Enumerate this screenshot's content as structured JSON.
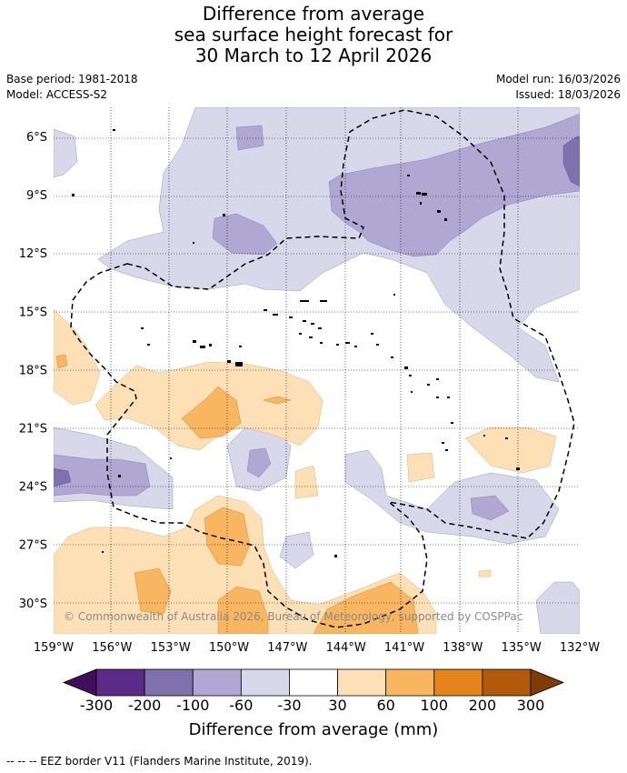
{
  "title": {
    "line1": "Difference from average",
    "line2": "sea surface height forecast for",
    "line3": "30 March to 12 April 2026"
  },
  "meta": {
    "base_period": "Base period: 1981-2018",
    "model": "Model: ACCESS-S2",
    "model_run": "Model run: 16/03/2026",
    "issued": "Issued: 18/03/2026"
  },
  "copyright": "© Commonwealth of Australia 2026, Bureau of Meteorology, supported by COSPPac",
  "axes": {
    "lon_labels": [
      "159°W",
      "156°W",
      "153°W",
      "150°W",
      "147°W",
      "144°W",
      "141°W",
      "138°W",
      "135°W",
      "132°W"
    ],
    "lon_values": [
      -159,
      -156,
      -153,
      -150,
      -147,
      -144,
      -141,
      -138,
      -135,
      -132
    ],
    "lat_labels": [
      "6°S",
      "9°S",
      "12°S",
      "15°S",
      "18°S",
      "21°S",
      "24°S",
      "27°S",
      "30°S"
    ],
    "lat_values": [
      -6,
      -9,
      -12,
      -15,
      -18,
      -21,
      -24,
      -27,
      -30
    ],
    "lon_range": [
      -159,
      -132
    ],
    "lat_range": [
      -4.5,
      -31.6
    ]
  },
  "colorbar": {
    "title": "Difference from average (mm)",
    "labels": [
      "-300",
      "-200",
      "-100",
      "-60",
      "-30",
      "30",
      "60",
      "100",
      "200",
      "300"
    ],
    "colors": [
      "#3f0f5c",
      "#5c2a87",
      "#7f70ae",
      "#b0a8d2",
      "#d8d8ea",
      "#ffffff",
      "#fde0b6",
      "#f9b660",
      "#e3851a",
      "#b15a0c",
      "#7f3b08"
    ]
  },
  "legend_note": "--  --  -- EEZ border V11 (Flanders Marine Institute, 2019)."
}
